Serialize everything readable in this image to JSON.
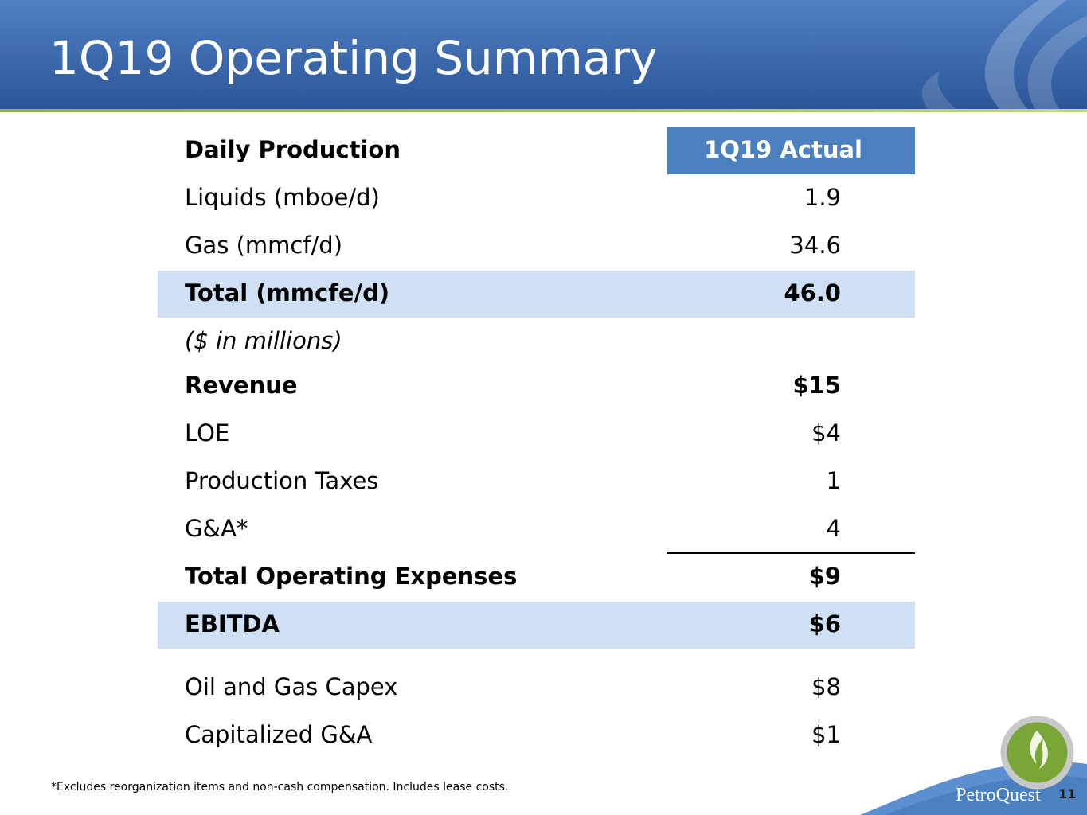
{
  "slide": {
    "title": "1Q19 Operating Summary",
    "page_number": "11",
    "brand_name": "PetroQuest",
    "footnote": "*Excludes reorganization items and non-cash compensation.  Includes lease costs."
  },
  "table": {
    "header_label": "Daily Production",
    "column_header": "1Q19 Actual",
    "rows": [
      {
        "label": "Liquids (mboe/d)",
        "value": "1.9"
      },
      {
        "label": "Gas (mmcf/d)",
        "value": "34.6"
      },
      {
        "label": "Total (mmcfe/d)",
        "value": "46.0"
      },
      {
        "label": "($ in millions)",
        "value": ""
      },
      {
        "label": "Revenue",
        "value": "$15"
      },
      {
        "label": "LOE",
        "value": "$4"
      },
      {
        "label": "Production Taxes",
        "value": "1"
      },
      {
        "label": "G&A*",
        "value": "4"
      },
      {
        "label": "Total Operating Expenses",
        "value": "$9"
      },
      {
        "label": "EBITDA",
        "value": "$6"
      },
      {
        "label": "Oil and Gas Capex",
        "value": "$8"
      },
      {
        "label": "Capitalized G&A",
        "value": "$1"
      }
    ]
  },
  "colors": {
    "header_bar": "#3f6db0",
    "column_header_fill": "#4a7fc0",
    "highlight_band": "#cfe0f5",
    "accent_rule": "#a6c35a"
  }
}
